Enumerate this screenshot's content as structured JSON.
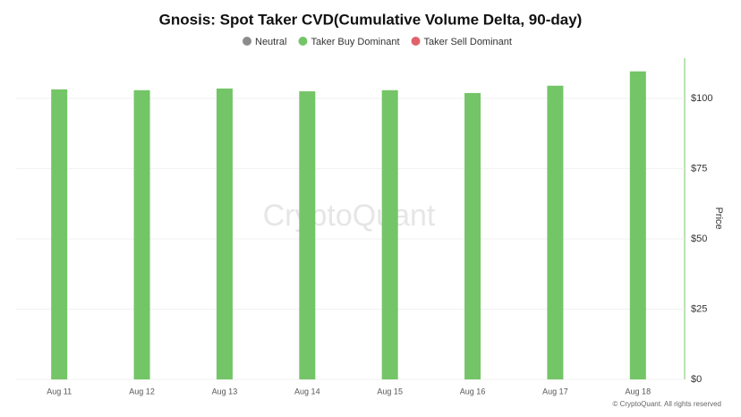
{
  "chart_data": {
    "type": "bar",
    "title": "Gnosis: Spot Taker CVD(Cumulative Volume Delta, 90-day)",
    "legend": [
      {
        "name": "Neutral",
        "color": "#8c8c8c"
      },
      {
        "name": "Taker Buy Dominant",
        "color": "#74c567"
      },
      {
        "name": "Taker Sell Dominant",
        "color": "#e0636b"
      }
    ],
    "categories": [
      "Aug 11",
      "Aug 12",
      "Aug 13",
      "Aug 14",
      "Aug 15",
      "Aug 16",
      "Aug 17",
      "Aug 18"
    ],
    "values": [
      103.2,
      102.9,
      103.5,
      102.5,
      102.9,
      101.9,
      104.5,
      109.6
    ],
    "color": "#74c567",
    "y_axis_label": "Price",
    "ylim": [
      0,
      114.3
    ],
    "yticks": [
      {
        "value": 0,
        "label": "$0"
      },
      {
        "value": 25,
        "label": "$25"
      },
      {
        "value": 50,
        "label": "$50"
      },
      {
        "value": 75,
        "label": "$75"
      },
      {
        "value": 100,
        "label": "$100"
      }
    ],
    "watermark": "CryptoQuant",
    "footer": "© CryptoQuant. All rights reserved"
  }
}
